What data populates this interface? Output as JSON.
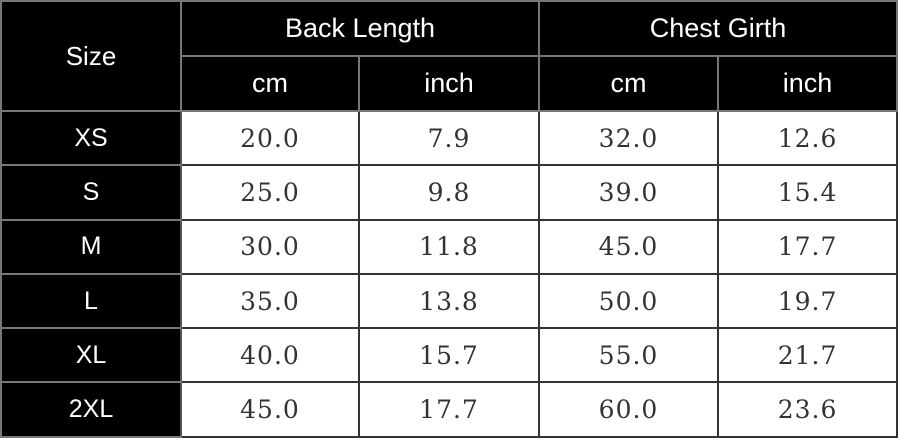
{
  "header": {
    "size": "Size",
    "groups": [
      "Back Length",
      "Chest Girth"
    ],
    "units": [
      "cm",
      "inch",
      "cm",
      "inch"
    ]
  },
  "rows": [
    {
      "size": "XS",
      "values": [
        "20.0",
        "7.9",
        "32.0",
        "12.6"
      ]
    },
    {
      "size": "S",
      "values": [
        "25.0",
        "9.8",
        "39.0",
        "15.4"
      ]
    },
    {
      "size": "M",
      "values": [
        "30.0",
        "11.8",
        "45.0",
        "17.7"
      ]
    },
    {
      "size": "L",
      "values": [
        "35.0",
        "13.8",
        "50.0",
        "19.7"
      ]
    },
    {
      "size": "XL",
      "values": [
        "40.0",
        "15.7",
        "55.0",
        "21.7"
      ]
    },
    {
      "size": "2XL",
      "values": [
        "45.0",
        "17.7",
        "60.0",
        "23.6"
      ]
    }
  ]
}
